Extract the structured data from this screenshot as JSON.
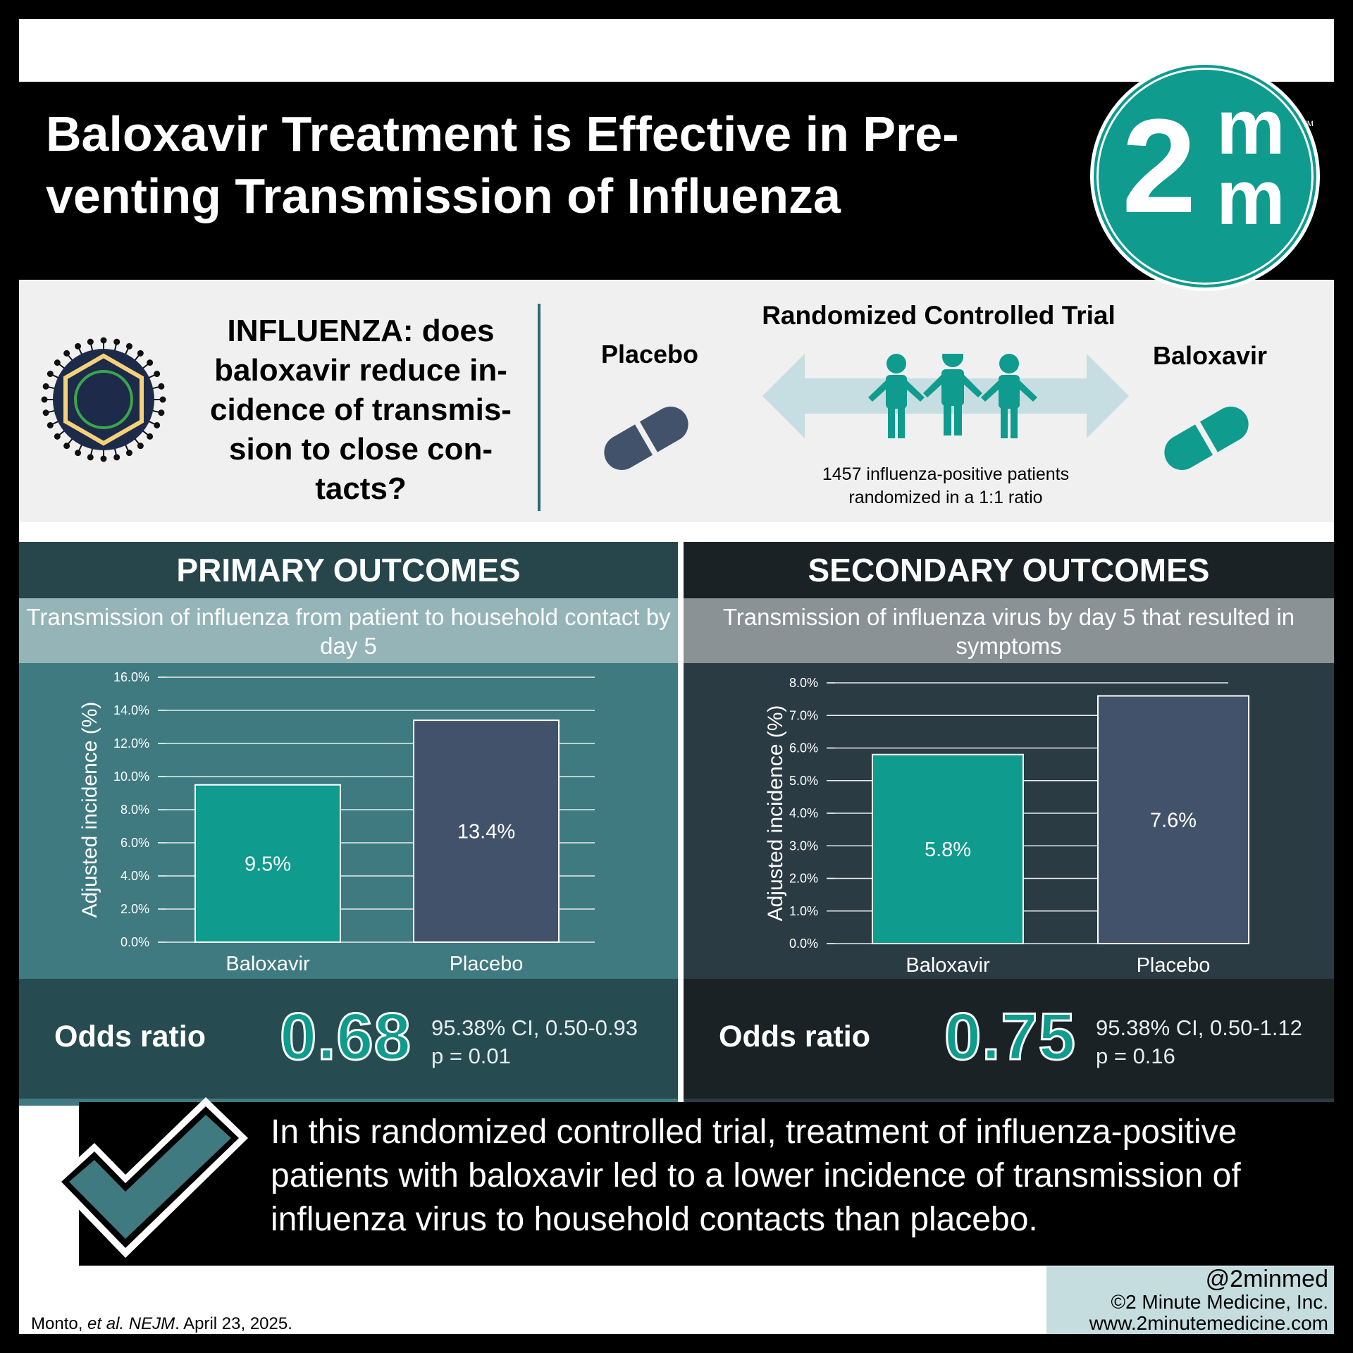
{
  "title": "Baloxavir Treatment is Effective in Pre-venting Transmission of Influenza",
  "logo": {
    "two": "2",
    "m1": "m",
    "m2": "m",
    "tm": "TM"
  },
  "study": {
    "question": "INFLUENZA: does baloxavir reduce in-cidence of transmis-sion to close con-tacts?",
    "rct_title": "Randomized Controlled Trial",
    "placebo_label": "Placebo",
    "baloxavir_label": "Baloxavir",
    "patients_line1": "1457 influenza-positive patients",
    "patients_line2": "randomized in a 1:1 ratio"
  },
  "colors": {
    "teal": "#0f9b8e",
    "slate": "#42526a",
    "primary_bg": "#3f7a81",
    "secondary_bg": "#2b3b44"
  },
  "primary": {
    "heading": "PRIMARY OUTCOMES",
    "subtitle": "Transmission of influenza from patient to household contact by day 5",
    "or_label": "Odds ratio",
    "or_value": "0.68",
    "ci": "95.38% CI, 0.50-0.93",
    "p": "p = 0.01"
  },
  "secondary": {
    "heading": "SECONDARY OUTCOMES",
    "subtitle": "Transmission of influenza virus by day 5 that resulted in symptoms",
    "or_label": "Odds ratio",
    "or_value": "0.75",
    "ci": "95.38% CI, 0.50-1.12",
    "p": "p = 0.16"
  },
  "chart_data": [
    {
      "type": "bar",
      "categories": [
        "Baloxavir",
        "Placebo"
      ],
      "values": [
        9.5,
        13.4
      ],
      "value_labels": [
        "9.5%",
        "13.4%"
      ],
      "ylabel": "Adjusted incidence (%)",
      "ylim": [
        0,
        16
      ],
      "yticks": [
        "0.0%",
        "2.0%",
        "4.0%",
        "6.0%",
        "8.0%",
        "10.0%",
        "12.0%",
        "14.0%",
        "16.0%"
      ],
      "bar_colors": [
        "#0f9b8e",
        "#42526a"
      ],
      "grid": true
    },
    {
      "type": "bar",
      "categories": [
        "Baloxavir",
        "Placebo"
      ],
      "values": [
        5.8,
        7.6
      ],
      "value_labels": [
        "5.8%",
        "7.6%"
      ],
      "ylabel": "Adjusted incidence (%)",
      "ylim": [
        0,
        8
      ],
      "yticks": [
        "0.0%",
        "1.0%",
        "2.0%",
        "3.0%",
        "4.0%",
        "5.0%",
        "6.0%",
        "7.0%",
        "8.0%"
      ],
      "bar_colors": [
        "#0f9b8e",
        "#42526a"
      ],
      "grid": true
    }
  ],
  "conclusion": "In this randomized controlled trial, treatment of influenza-positive patients with baloxavir led to a lower incidence of transmission of influenza virus to household contacts than placebo.",
  "footer": {
    "citation_authors": "Monto, ",
    "citation_etal": "et al.",
    "citation_journal": "NEJM",
    "citation_date": ". April 23, 2025.",
    "handle": "@2minmed",
    "company": "©2 Minute Medicine, Inc.",
    "url": "www.2minutemedicine.com"
  }
}
